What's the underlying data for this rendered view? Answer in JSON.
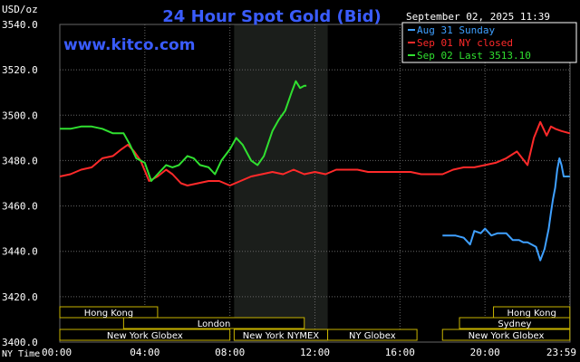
{
  "header": {
    "title": "24 Hour Spot Gold (Bid)",
    "datetime": "September 02, 2025 11:39",
    "units": "USD/oz",
    "watermark": "www.kitco.com"
  },
  "axes": {
    "x_caption": "NY Time",
    "x_ticks": [
      "00:00",
      "04:00",
      "08:00",
      "12:00",
      "16:00",
      "20:00",
      "23:59"
    ],
    "y_ticks": [
      "3540.0",
      "3520.0",
      "3500.0",
      "3480.0",
      "3460.0",
      "3440.0",
      "3420.0",
      "3400.0"
    ]
  },
  "legend": {
    "placement": "top-right",
    "items": [
      {
        "label": "Aug 31 Sunday",
        "color": "#3fa0ff"
      },
      {
        "label": "Sep 01 NY closed",
        "color": "#ff2a2a"
      },
      {
        "label": "Sep 02 Last 3513.10",
        "color": "#30e030"
      }
    ]
  },
  "sessions": [
    {
      "label": "Hong Kong",
      "row": 0,
      "start": 0.0,
      "end": 4.6
    },
    {
      "label": "Hong Kong",
      "row": 0,
      "start": 20.4,
      "end": 23.99
    },
    {
      "label": "London",
      "row": 1,
      "start": 3.0,
      "end": 11.5
    },
    {
      "label": "Sydney",
      "row": 1,
      "start": 18.8,
      "end": 23.99
    },
    {
      "label": "New York Globex",
      "row": 2,
      "start": 0.0,
      "end": 8.0
    },
    {
      "label": "New York NYMEX",
      "row": 2,
      "start": 8.2,
      "end": 12.6
    },
    {
      "label": "NY Globex",
      "row": 2,
      "start": 12.6,
      "end": 16.8
    },
    {
      "label": "New York Globex",
      "row": 2,
      "start": 18.0,
      "end": 23.99
    }
  ],
  "colors": {
    "background": "#000000",
    "grid": "#666666",
    "highlight": "#1b1e1b",
    "axis_text": "#ffffff",
    "title": "#3a5cff",
    "session_border": "#c8b400"
  },
  "chart_data": {
    "type": "line",
    "title": "24 Hour Spot Gold (Bid)",
    "xlabel": "NY Time",
    "ylabel": "USD/oz",
    "xlim": [
      0,
      24
    ],
    "ylim": [
      3400,
      3540
    ],
    "grid": true,
    "highlight_range": [
      8.2,
      12.6
    ],
    "series": [
      {
        "name": "Aug 31 Sunday",
        "color": "#3fa0ff",
        "x": [
          18.0,
          18.6,
          19.0,
          19.3,
          19.5,
          19.8,
          20.0,
          20.3,
          20.6,
          21.0,
          21.3,
          21.6,
          21.8,
          22.0,
          22.2,
          22.4,
          22.6,
          22.8,
          23.0,
          23.1,
          23.2,
          23.3,
          23.4,
          23.5,
          23.6,
          23.7,
          23.99
        ],
        "y": [
          3447,
          3447,
          3446,
          3443,
          3449,
          3448,
          3450,
          3447,
          3448,
          3448,
          3445,
          3445,
          3444,
          3444,
          3443,
          3442,
          3436,
          3441,
          3450,
          3457,
          3463,
          3468,
          3476,
          3481,
          3478,
          3473,
          3473
        ]
      },
      {
        "name": "Sep 01 NY closed",
        "color": "#ff2a2a",
        "x": [
          0.0,
          0.5,
          1.0,
          1.5,
          2.0,
          2.5,
          2.9,
          3.2,
          3.5,
          3.8,
          4.2,
          4.6,
          5.0,
          5.3,
          5.7,
          6.0,
          6.5,
          7.0,
          7.5,
          8.0,
          8.5,
          9.0,
          9.5,
          10.0,
          10.5,
          11.0,
          11.5,
          12.0,
          12.5,
          13.0,
          13.5,
          14.0,
          14.5,
          15.0,
          15.5,
          16.0,
          16.5,
          17.0,
          17.5,
          18.0,
          18.5,
          19.0,
          19.5,
          20.0,
          20.5,
          21.0,
          21.5,
          22.0,
          22.3,
          22.6,
          22.9,
          23.1,
          23.3,
          23.6,
          23.99
        ],
        "y": [
          3473,
          3474,
          3476,
          3477,
          3481,
          3482,
          3485,
          3487,
          3484,
          3480,
          3471,
          3473,
          3476,
          3474,
          3470,
          3469,
          3470,
          3471,
          3471,
          3469,
          3471,
          3473,
          3474,
          3475,
          3474,
          3476,
          3474,
          3475,
          3474,
          3476,
          3476,
          3476,
          3475,
          3475,
          3475,
          3475,
          3475,
          3474,
          3474,
          3474,
          3476,
          3477,
          3477,
          3478,
          3479,
          3481,
          3484,
          3478,
          3490,
          3497,
          3491,
          3495,
          3494,
          3493,
          3492
        ]
      },
      {
        "name": "Sep 02 Last 3513.10",
        "color": "#30e030",
        "x": [
          0.0,
          0.5,
          1.0,
          1.5,
          2.0,
          2.5,
          3.0,
          3.3,
          3.6,
          4.0,
          4.3,
          4.6,
          5.0,
          5.3,
          5.6,
          6.0,
          6.3,
          6.6,
          7.0,
          7.3,
          7.6,
          8.0,
          8.3,
          8.6,
          9.0,
          9.3,
          9.6,
          10.0,
          10.3,
          10.6,
          10.9,
          11.1,
          11.3,
          11.5,
          11.6
        ],
        "y": [
          3494,
          3494,
          3495,
          3495,
          3494,
          3492,
          3492,
          3487,
          3481,
          3479,
          3471,
          3474,
          3478,
          3477,
          3478,
          3482,
          3481,
          3478,
          3477,
          3474,
          3480,
          3485,
          3490,
          3487,
          3480,
          3478,
          3482,
          3493,
          3498,
          3502,
          3510,
          3515,
          3512,
          3513,
          3513
        ]
      }
    ]
  }
}
